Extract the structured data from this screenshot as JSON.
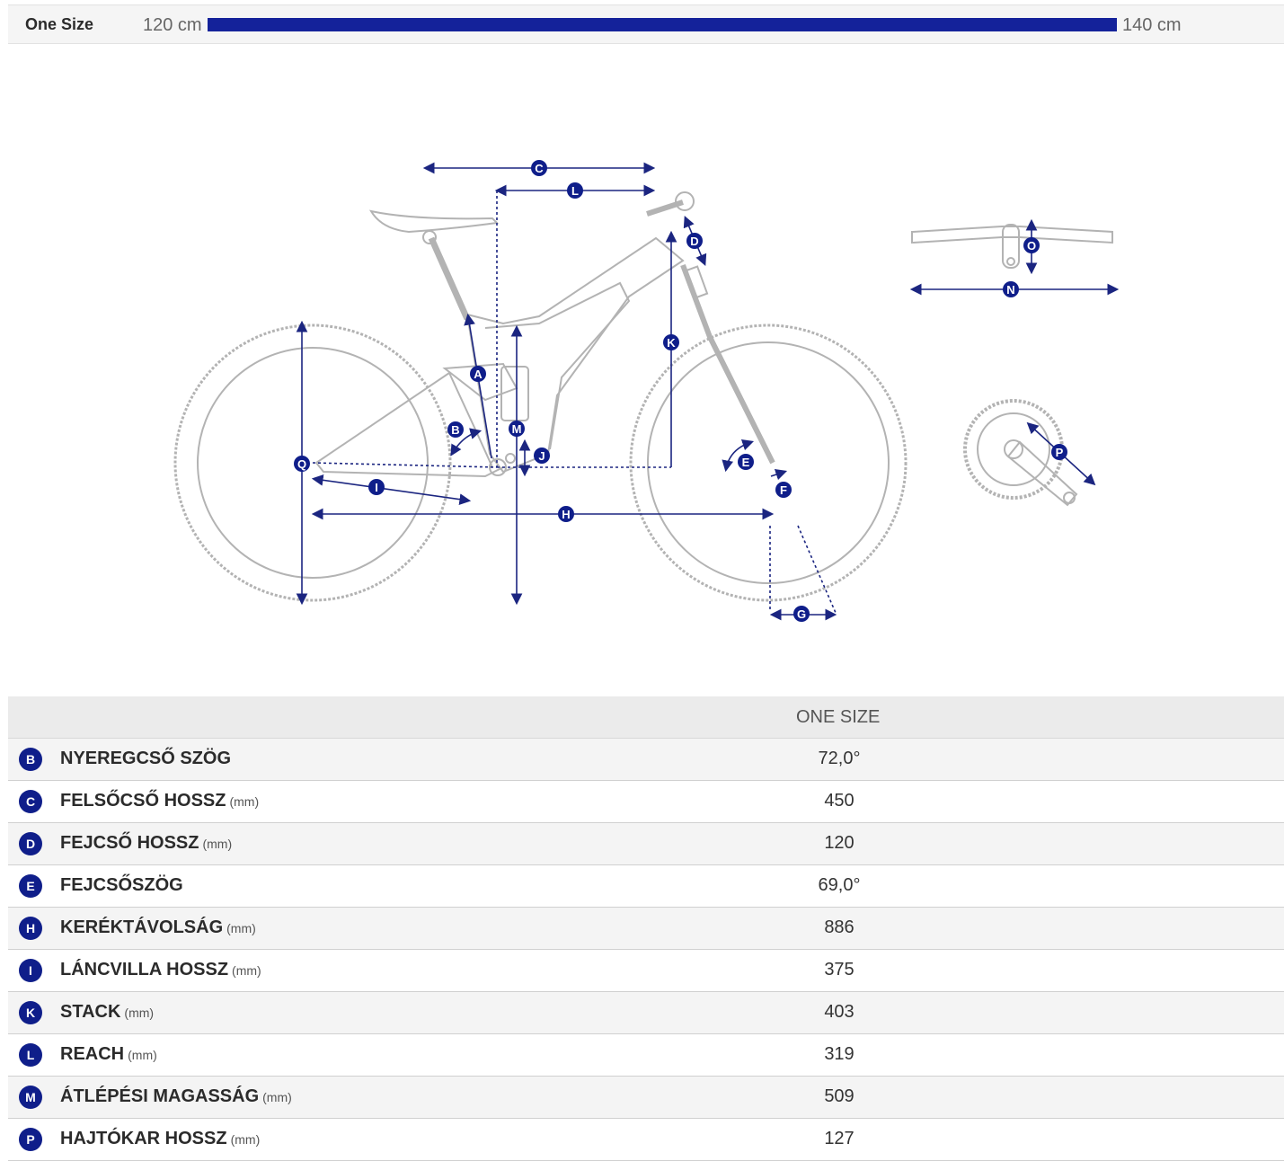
{
  "size_bar": {
    "size_name": "One Size",
    "range_min": "120 cm",
    "range_max": "140 cm",
    "fill_fraction": 1.0,
    "accent_color": "#14229a"
  },
  "diagram": {
    "markers": [
      "A",
      "B",
      "C",
      "D",
      "E",
      "F",
      "G",
      "H",
      "I",
      "J",
      "K",
      "L",
      "M",
      "N",
      "O",
      "P",
      "Q"
    ],
    "line_color": "#b3b3b3",
    "dimension_color": "#1b2580"
  },
  "table": {
    "column_header": "ONE SIZE",
    "rows": [
      {
        "letter": "B",
        "label": "NYEREGCSŐ SZÖG",
        "unit": "",
        "value": "72,0°"
      },
      {
        "letter": "C",
        "label": "FELSŐCSŐ HOSSZ",
        "unit": "(mm)",
        "value": "450"
      },
      {
        "letter": "D",
        "label": "FEJCSŐ HOSSZ",
        "unit": "(mm)",
        "value": "120"
      },
      {
        "letter": "E",
        "label": "FEJCSŐSZÖG",
        "unit": "",
        "value": "69,0°"
      },
      {
        "letter": "H",
        "label": "KERÉKTÁVOLSÁG",
        "unit": "(mm)",
        "value": "886"
      },
      {
        "letter": "I",
        "label": "LÁNCVILLA HOSSZ",
        "unit": "(mm)",
        "value": "375"
      },
      {
        "letter": "K",
        "label": "STACK",
        "unit": "(mm)",
        "value": "403"
      },
      {
        "letter": "L",
        "label": "REACH",
        "unit": "(mm)",
        "value": "319"
      },
      {
        "letter": "M",
        "label": "ÁTLÉPÉSI MAGASSÁG",
        "unit": "(mm)",
        "value": "509"
      },
      {
        "letter": "P",
        "label": "HAJTÓKAR HOSSZ",
        "unit": "(mm)",
        "value": "127"
      }
    ]
  }
}
